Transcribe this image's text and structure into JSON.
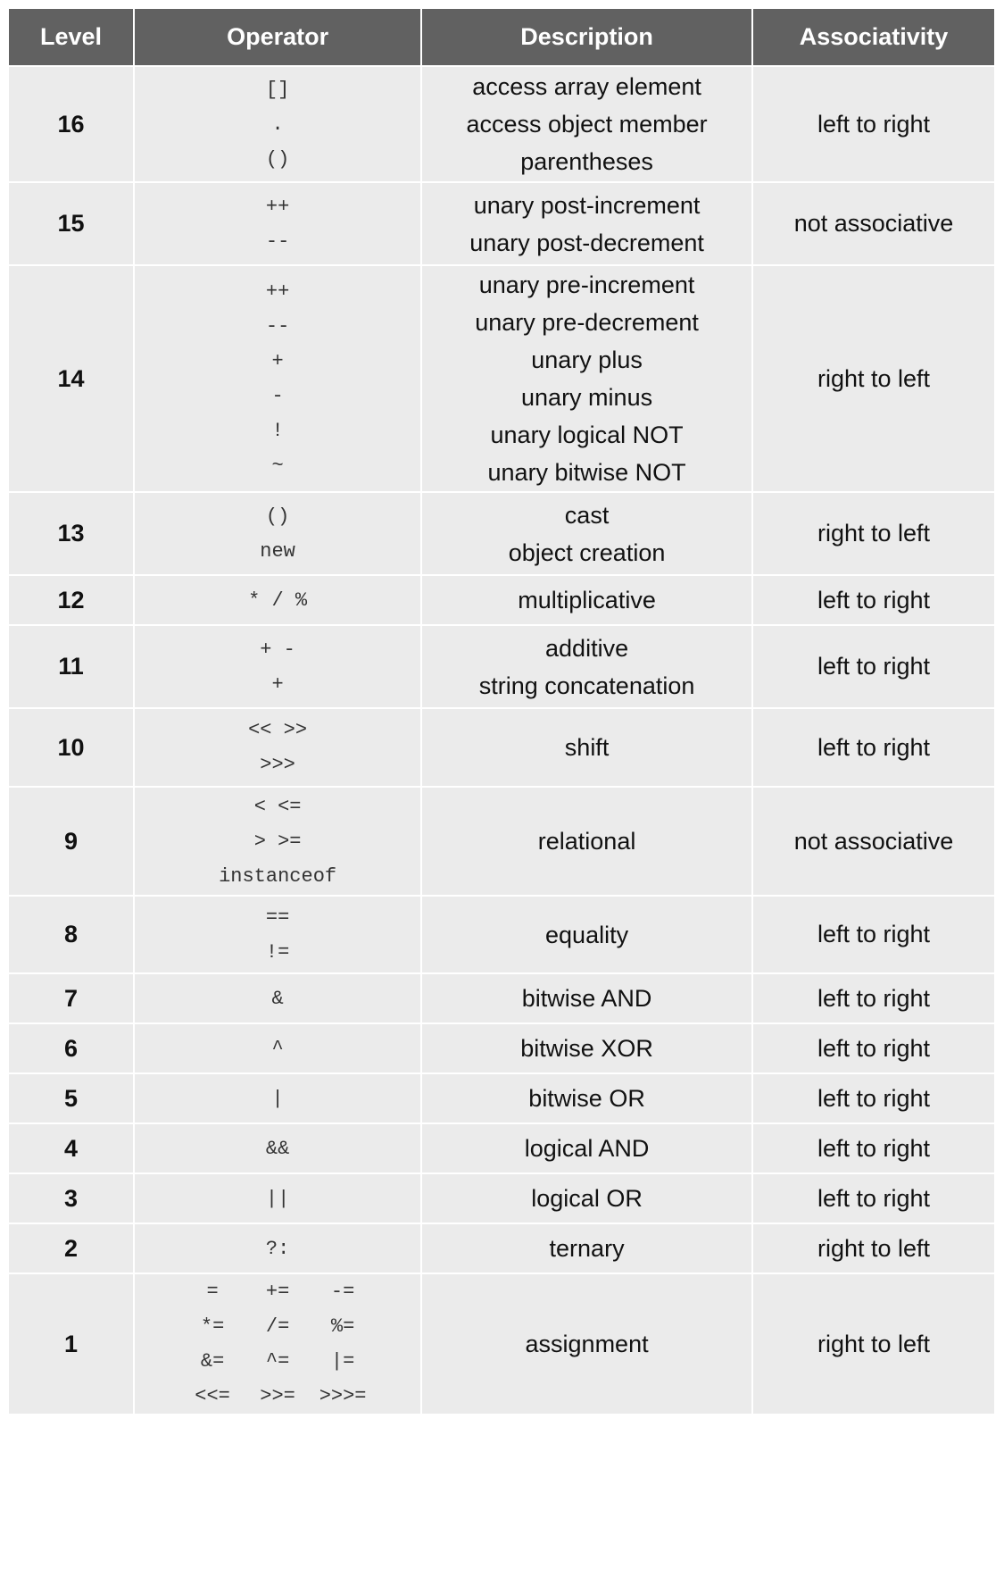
{
  "headers": [
    "Level",
    "Operator",
    "Description",
    "Associativity"
  ],
  "rows": [
    {
      "level": "16",
      "operators": [
        "[]",
        ".",
        "()"
      ],
      "descriptions": [
        "access array element",
        "access object member",
        "parentheses"
      ],
      "associativity": "left to right"
    },
    {
      "level": "15",
      "operators": [
        "++",
        "--"
      ],
      "descriptions": [
        "unary post-increment",
        "unary post-decrement"
      ],
      "associativity": "not associative"
    },
    {
      "level": "14",
      "operators": [
        "++",
        "--",
        "+",
        "-",
        "!",
        "~"
      ],
      "descriptions": [
        "unary pre-increment",
        "unary pre-decrement",
        "unary plus",
        "unary minus",
        "unary logical NOT",
        "unary bitwise NOT"
      ],
      "associativity": "right to left"
    },
    {
      "level": "13",
      "operators": [
        "()",
        "new"
      ],
      "descriptions": [
        "cast",
        "object creation"
      ],
      "associativity": "right to left"
    },
    {
      "level": "12",
      "operators": [
        "* / %"
      ],
      "descriptions": [
        "multiplicative"
      ],
      "associativity": "left to right"
    },
    {
      "level": "11",
      "operators": [
        "+ -",
        "+"
      ],
      "descriptions": [
        "additive",
        "string concatenation"
      ],
      "associativity": "left to right"
    },
    {
      "level": "10",
      "operators": [
        "<< >>",
        ">>>"
      ],
      "descriptions": [
        "shift"
      ],
      "associativity": "left to right"
    },
    {
      "level": "9",
      "operators": [
        "< <=",
        "> >=",
        "instanceof"
      ],
      "descriptions": [
        "relational"
      ],
      "associativity": "not associative"
    },
    {
      "level": "8",
      "operators": [
        "==",
        "!="
      ],
      "descriptions": [
        "equality"
      ],
      "associativity": "left to right"
    },
    {
      "level": "7",
      "operators": [
        "&"
      ],
      "descriptions": [
        "bitwise AND"
      ],
      "associativity": "left to right"
    },
    {
      "level": "6",
      "operators": [
        "^"
      ],
      "descriptions": [
        "bitwise XOR"
      ],
      "associativity": "left to right"
    },
    {
      "level": "5",
      "operators": [
        "|"
      ],
      "descriptions": [
        "bitwise OR"
      ],
      "associativity": "left to right"
    },
    {
      "level": "4",
      "operators": [
        "&&"
      ],
      "descriptions": [
        "logical AND"
      ],
      "associativity": "left to right"
    },
    {
      "level": "3",
      "operators": [
        "||"
      ],
      "descriptions": [
        "logical OR"
      ],
      "associativity": "left to right"
    },
    {
      "level": "2",
      "operators": [
        "?:"
      ],
      "descriptions": [
        "ternary"
      ],
      "associativity": "right to left"
    },
    {
      "level": "1",
      "operators": [
        "=",
        "+=",
        "-=",
        "*=",
        "/=",
        "%=",
        "&=",
        "^=",
        "|=",
        "<<=",
        ">>=",
        ">>>="
      ],
      "operator_grid": true,
      "descriptions": [
        "assignment"
      ],
      "associativity": "right to left"
    }
  ],
  "colors": {
    "header_bg": "#616161",
    "header_text": "#ffffff",
    "cell_bg": "#ebebeb"
  }
}
